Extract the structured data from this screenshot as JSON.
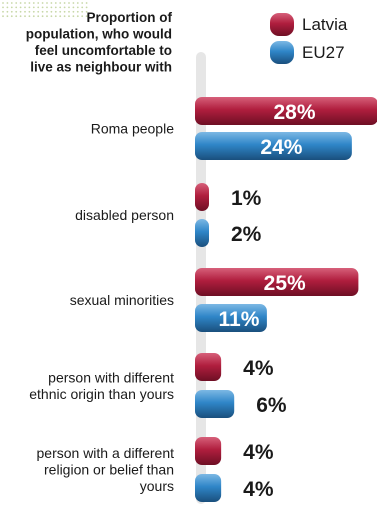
{
  "chart_data": {
    "type": "bar",
    "orientation": "horizontal",
    "title": "Proportion of population, who would feel uncomfortable to live as neighbour with",
    "title_lines": [
      "Proportion of",
      "population, who would",
      "feel uncomfortable to",
      "live as neighbour with"
    ],
    "unit": "%",
    "legend_position": "top-right",
    "categories": [
      "Roma people",
      "disabled person",
      "sexual minorities",
      "person with different ethnic origin than yours",
      "person with a different religion or belief than yours"
    ],
    "category_lines": [
      [
        "Roma people"
      ],
      [
        "disabled person"
      ],
      [
        "sexual minorities"
      ],
      [
        "person with different",
        "ethnic origin than yours"
      ],
      [
        "person with a different",
        "religion or belief than",
        "yours"
      ]
    ],
    "series": [
      {
        "name": "Latvia",
        "values": [
          28,
          1,
          25,
          4,
          4
        ],
        "color": "#b01e3e",
        "light": "#d6607a",
        "dark": "#6e0f24"
      },
      {
        "name": "EU27",
        "values": [
          24,
          2,
          11,
          6,
          4
        ],
        "color": "#2f86c8",
        "light": "#7cb8e4",
        "dark": "#1a4f7d"
      }
    ],
    "value_labels": [
      [
        "28%",
        "1%",
        "25%",
        "4%",
        "4%"
      ],
      [
        "24%",
        "2%",
        "11%",
        "6%",
        "4%"
      ]
    ]
  }
}
